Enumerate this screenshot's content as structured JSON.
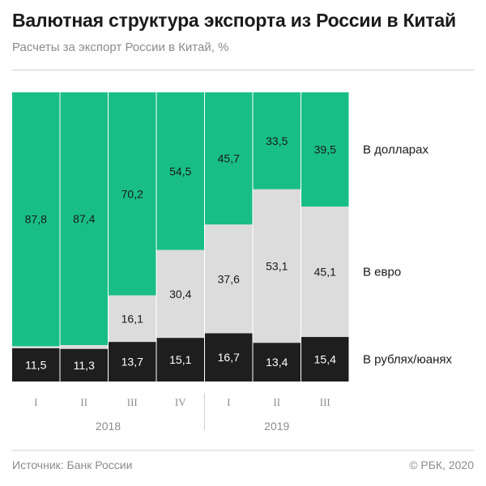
{
  "header": {
    "title": "Валютная структура экспорта из России в Китай",
    "subtitle": "Расчеты за экспорт России в Китай, %"
  },
  "footer": {
    "source": "Источник: Банк России",
    "copyright": "© РБК, 2020"
  },
  "colors": {
    "usd": "#19be87",
    "eur": "#dcdcdc",
    "rub": "#1e1e1e",
    "text_dark": "#1a1a1a",
    "text_light": "#ffffff",
    "muted": "#8c8c8c"
  },
  "chart_data": {
    "type": "bar",
    "stacked": true,
    "normalized_to": 100,
    "categories": [
      "I",
      "II",
      "III",
      "IV",
      "I",
      "II",
      "III"
    ],
    "groups": [
      {
        "label": "2018",
        "quarters": [
          "I",
          "II",
          "III",
          "IV"
        ]
      },
      {
        "label": "2019",
        "quarters": [
          "I",
          "II",
          "III"
        ]
      }
    ],
    "series": [
      {
        "name": "В рублях/юанях",
        "key": "rub",
        "values": [
          11.5,
          11.3,
          13.7,
          15.1,
          16.7,
          13.4,
          15.4
        ],
        "labels": [
          "11,5",
          "11,3",
          "13,7",
          "15,1",
          "16,7",
          "13,4",
          "15,4"
        ]
      },
      {
        "name": "В евро",
        "key": "eur",
        "values": [
          0.7,
          1.3,
          16.1,
          30.4,
          37.6,
          53.1,
          45.1
        ],
        "labels": [
          "",
          "",
          "16,1",
          "30,4",
          "37,6",
          "53,1",
          "45,1"
        ]
      },
      {
        "name": "В долларах",
        "key": "usd",
        "values": [
          87.8,
          87.4,
          70.2,
          54.5,
          45.7,
          33.5,
          39.5
        ],
        "labels": [
          "87,8",
          "87,4",
          "70,2",
          "54,5",
          "45,7",
          "33,5",
          "39,5"
        ]
      }
    ],
    "legend_placement": "right"
  }
}
